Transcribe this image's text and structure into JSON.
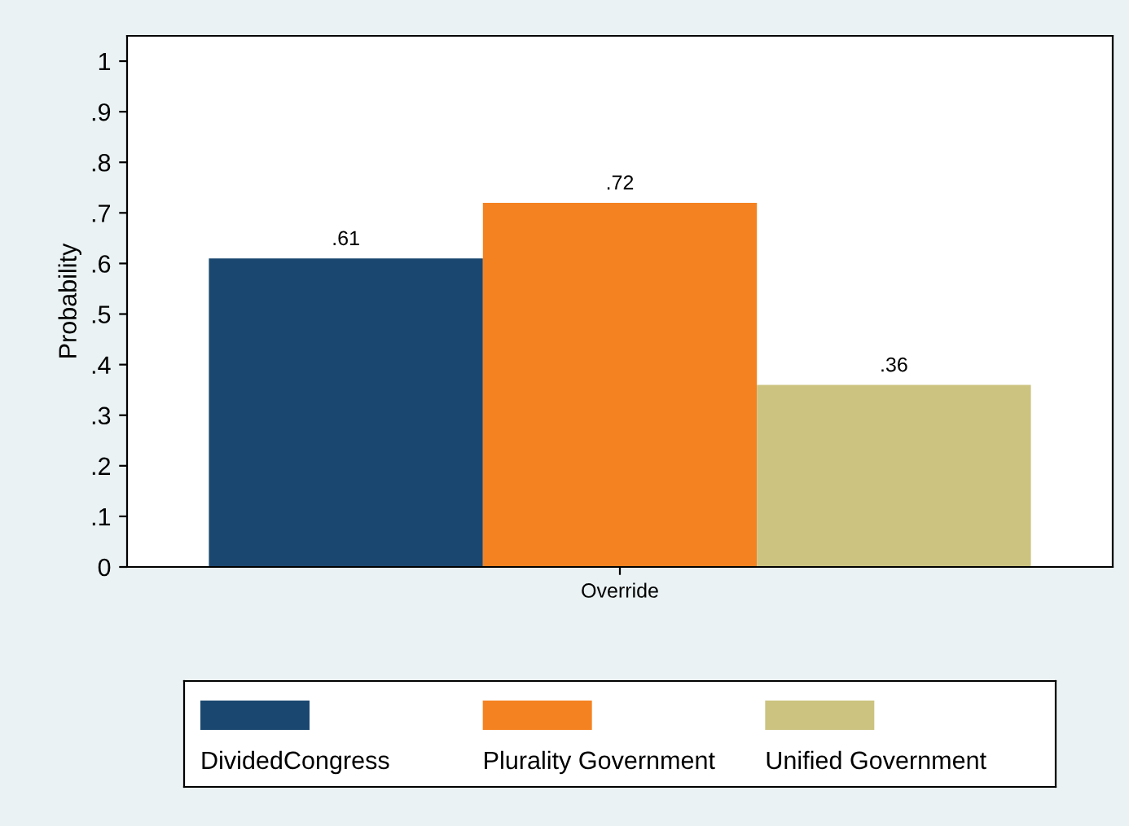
{
  "chart_data": {
    "type": "bar",
    "ylabel": "Probability",
    "categories": [
      "Override"
    ],
    "series": [
      {
        "name": "DividedCongress",
        "color": "#1a476f",
        "values": [
          0.61
        ],
        "value_labels": [
          ".61"
        ]
      },
      {
        "name": "Plurality Government",
        "color": "#f58220",
        "values": [
          0.72
        ],
        "value_labels": [
          ".72"
        ]
      },
      {
        "name": "Unified Government",
        "color": "#cbc37f",
        "values": [
          0.36
        ],
        "value_labels": [
          ".36"
        ]
      }
    ],
    "ylim": [
      0,
      1.05
    ],
    "yticks": [
      0,
      {
        "value": 0.1,
        "label": ".1"
      },
      {
        "value": 0.2,
        "label": ".2"
      },
      {
        "value": 0.3,
        "label": ".3"
      },
      {
        "value": 0.4,
        "label": ".4"
      },
      {
        "value": 0.5,
        "label": ".5"
      },
      {
        "value": 0.6,
        "label": ".6"
      },
      {
        "value": 0.7,
        "label": ".7"
      },
      {
        "value": 0.8,
        "label": ".8"
      },
      {
        "value": 0.9,
        "label": ".9"
      },
      1
    ],
    "grid": false,
    "legend": "bottom"
  }
}
